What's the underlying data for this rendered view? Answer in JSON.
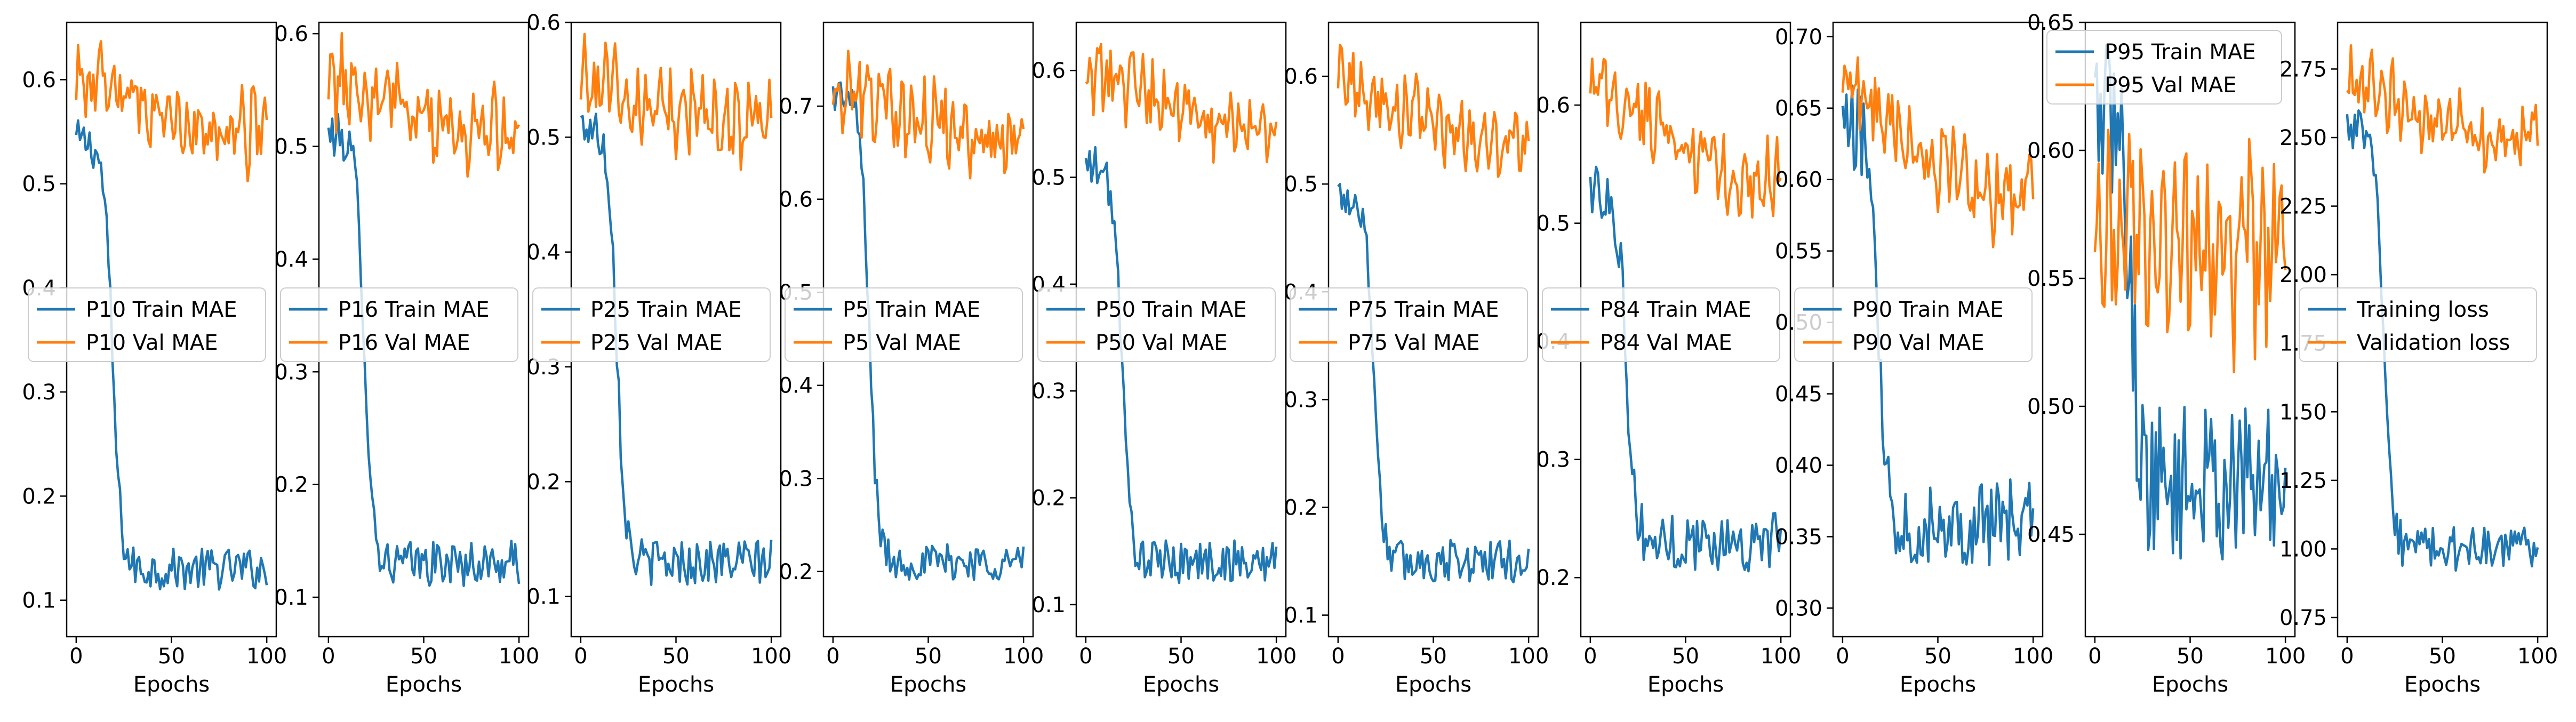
{
  "figure": {
    "background": "#ffffff"
  },
  "colors": {
    "train": "#1f77b4",
    "val": "#ff7f0e",
    "axes": "#000000"
  },
  "chart_data": [
    {
      "type": "line",
      "xlabel": "Epochs",
      "ylim": [
        0.065,
        0.655
      ],
      "xticks": [
        0,
        50,
        100
      ],
      "yticks": [
        0.1,
        0.2,
        0.3,
        0.4,
        0.5,
        0.6
      ],
      "yticklabels": [
        "0.1",
        "0.2",
        "0.3",
        "0.4",
        "0.5",
        "0.6"
      ],
      "legend": "center-left",
      "train": {
        "name": "P10 Train MAE",
        "start": 0.54,
        "plateau": 0.13,
        "drop": 0.4,
        "noise": 0.02
      },
      "val": {
        "name": "P10 Val MAE",
        "start": 0.6,
        "plateau": 0.55,
        "drop": 0.06,
        "noise": 0.03
      }
    },
    {
      "type": "line",
      "xlabel": "Epochs",
      "ylim": [
        0.065,
        0.61
      ],
      "xticks": [
        0,
        50,
        100
      ],
      "yticks": [
        0.1,
        0.2,
        0.3,
        0.4,
        0.5,
        0.6
      ],
      "yticklabels": [
        "0.1",
        "0.2",
        "0.3",
        "0.4",
        "0.5",
        "0.6"
      ],
      "legend": "center-left",
      "train": {
        "name": "P16 Train MAE",
        "start": 0.5,
        "plateau": 0.13,
        "drop": 0.37,
        "noise": 0.02
      },
      "val": {
        "name": "P16 Val MAE",
        "start": 0.56,
        "plateau": 0.51,
        "drop": 0.05,
        "noise": 0.03
      }
    },
    {
      "type": "line",
      "xlabel": "Epochs",
      "ylim": [
        0.065,
        0.6
      ],
      "xticks": [
        0,
        50,
        100
      ],
      "yticks": [
        0.1,
        0.2,
        0.3,
        0.4,
        0.5,
        0.6
      ],
      "yticklabels": [
        "0.1",
        "0.2",
        "0.3",
        "0.4",
        "0.5",
        "0.6"
      ],
      "legend": "center-left",
      "train": {
        "name": "P25 Train MAE",
        "start": 0.5,
        "plateau": 0.13,
        "drop": 0.37,
        "noise": 0.02
      },
      "val": {
        "name": "P25 Val MAE",
        "start": 0.55,
        "plateau": 0.51,
        "drop": 0.04,
        "noise": 0.03
      }
    },
    {
      "type": "line",
      "xlabel": "Epochs",
      "ylim": [
        0.13,
        0.79
      ],
      "xticks": [
        0,
        50,
        100
      ],
      "yticks": [
        0.2,
        0.3,
        0.4,
        0.5,
        0.6,
        0.7
      ],
      "yticklabels": [
        "0.2",
        "0.3",
        "0.4",
        "0.5",
        "0.6",
        "0.7"
      ],
      "legend": "center-left",
      "train": {
        "name": "P5 Train MAE",
        "start": 0.7,
        "plateau": 0.21,
        "drop": 0.49,
        "noise": 0.02
      },
      "val": {
        "name": "P5 Val MAE",
        "start": 0.72,
        "plateau": 0.67,
        "drop": 0.05,
        "noise": 0.035
      }
    },
    {
      "type": "line",
      "xlabel": "Epochs",
      "ylim": [
        0.07,
        0.645
      ],
      "xticks": [
        0,
        50,
        100
      ],
      "yticks": [
        0.1,
        0.2,
        0.3,
        0.4,
        0.5,
        0.6
      ],
      "yticklabels": [
        "0.1",
        "0.2",
        "0.3",
        "0.4",
        "0.5",
        "0.6"
      ],
      "legend": "center-left",
      "train": {
        "name": "P50 Train MAE",
        "start": 0.5,
        "plateau": 0.14,
        "drop": 0.36,
        "noise": 0.02
      },
      "val": {
        "name": "P50 Val MAE",
        "start": 0.6,
        "plateau": 0.55,
        "drop": 0.05,
        "noise": 0.025
      }
    },
    {
      "type": "line",
      "xlabel": "Epochs",
      "ylim": [
        0.08,
        0.65
      ],
      "xticks": [
        0,
        50,
        100
      ],
      "yticks": [
        0.1,
        0.2,
        0.3,
        0.4,
        0.5,
        0.6
      ],
      "yticklabels": [
        "0.1",
        "0.2",
        "0.3",
        "0.4",
        "0.5",
        "0.6"
      ],
      "legend": "center-left",
      "train": {
        "name": "P75 Train MAE",
        "start": 0.48,
        "plateau": 0.15,
        "drop": 0.33,
        "noise": 0.02
      },
      "val": {
        "name": "P75 Val MAE",
        "start": 0.6,
        "plateau": 0.54,
        "drop": 0.06,
        "noise": 0.025
      }
    },
    {
      "type": "line",
      "xlabel": "Epochs",
      "ylim": [
        0.15,
        0.67
      ],
      "xticks": [
        0,
        50,
        100
      ],
      "yticks": [
        0.2,
        0.3,
        0.4,
        0.5,
        0.6
      ],
      "yticklabels": [
        "0.2",
        "0.3",
        "0.4",
        "0.5",
        "0.6"
      ],
      "legend": "center-left",
      "train": {
        "name": "P84 Train MAE",
        "start": 0.52,
        "plateau": 0.23,
        "drop": 0.29,
        "noise": 0.025
      },
      "val": {
        "name": "P84 Val MAE",
        "start": 0.62,
        "plateau": 0.54,
        "drop": 0.08,
        "noise": 0.025
      }
    },
    {
      "type": "line",
      "xlabel": "Epochs",
      "ylim": [
        0.28,
        0.71
      ],
      "xticks": [
        0,
        50,
        100
      ],
      "yticks": [
        0.3,
        0.35,
        0.4,
        0.45,
        0.5,
        0.55,
        0.6,
        0.65,
        0.7
      ],
      "yticklabels": [
        "0.30",
        "0.35",
        "0.40",
        "0.45",
        "0.50",
        "0.55",
        "0.60",
        "0.65",
        "0.70"
      ],
      "legend": "center-left",
      "train": {
        "name": "P90 Train MAE",
        "start": 0.63,
        "plateau": 0.36,
        "drop": 0.27,
        "noise": 0.03
      },
      "val": {
        "name": "P90 Val MAE",
        "start": 0.67,
        "plateau": 0.59,
        "drop": 0.08,
        "noise": 0.025
      }
    },
    {
      "type": "line",
      "xlabel": "Epochs",
      "ylim": [
        0.41,
        0.65
      ],
      "xticks": [
        0,
        50,
        100
      ],
      "yticks": [
        0.45,
        0.5,
        0.55,
        0.6,
        0.65
      ],
      "yticklabels": [
        "0.45",
        "0.50",
        "0.55",
        "0.60",
        "0.65"
      ],
      "legend": "top-left",
      "train": {
        "name": "P95 Train MAE",
        "start": 0.61,
        "plateau": 0.47,
        "drop": 0.14,
        "noise": 0.03
      },
      "val": {
        "name": "P95 Val MAE",
        "start": 0.57,
        "plateau": 0.56,
        "drop": 0.01,
        "noise": 0.03
      }
    },
    {
      "type": "line",
      "xlabel": "Epochs",
      "ylim": [
        0.68,
        2.92
      ],
      "xticks": [
        0,
        50,
        100
      ],
      "yticks": [
        0.75,
        1.0,
        1.25,
        1.5,
        1.75,
        2.0,
        2.25,
        2.5,
        2.75
      ],
      "yticklabels": [
        "0.75",
        "1.00",
        "1.25",
        "1.50",
        "1.75",
        "2.00",
        "2.25",
        "2.50",
        "2.75"
      ],
      "legend": "center-left",
      "train": {
        "name": "Training loss",
        "start": 2.5,
        "plateau": 1.0,
        "drop": 1.5,
        "noise": 0.08
      },
      "val": {
        "name": "Validation loss",
        "start": 2.7,
        "plateau": 2.5,
        "drop": 0.2,
        "noise": 0.1
      }
    }
  ]
}
